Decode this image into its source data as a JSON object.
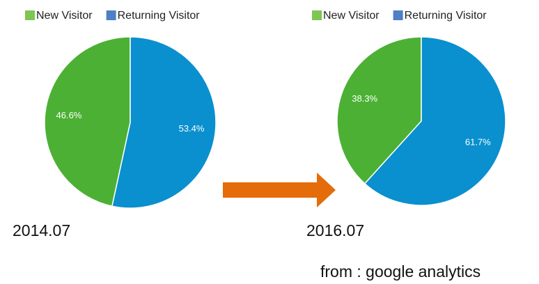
{
  "chart_data": [
    {
      "type": "pie",
      "title": "2014.07",
      "categories": [
        "New Visitor",
        "Returning Visitor"
      ],
      "values": [
        46.6,
        53.4
      ],
      "value_labels": [
        "46.6%",
        "53.4%"
      ],
      "colors": [
        "#4cb034",
        "#0a8fcf"
      ],
      "legend_colors": [
        "#7dc653",
        "#4f7fc4"
      ]
    },
    {
      "type": "pie",
      "title": "2016.07",
      "categories": [
        "New Visitor",
        "Returning Visitor"
      ],
      "values": [
        38.3,
        61.7
      ],
      "value_labels": [
        "38.3%",
        "61.7%"
      ],
      "colors": [
        "#4cb034",
        "#0a8fcf"
      ],
      "legend_colors": [
        "#7dc653",
        "#4f7fc4"
      ]
    }
  ],
  "source": "from : google analytics"
}
